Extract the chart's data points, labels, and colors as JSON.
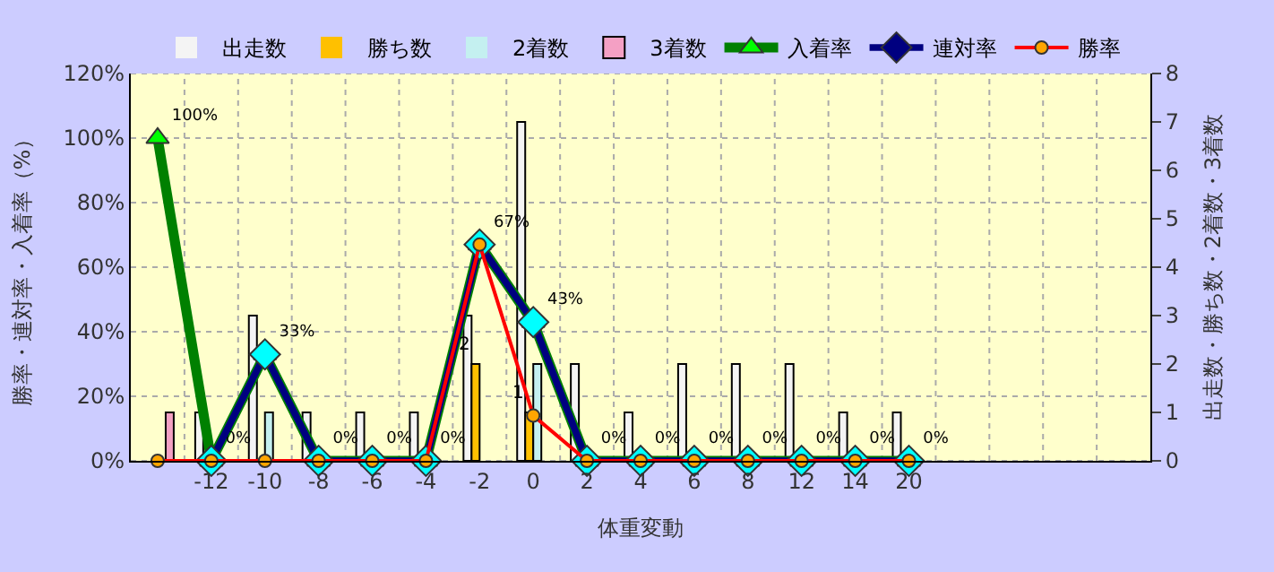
{
  "chart_data": {
    "type": "bar",
    "xlabel": "体重変動",
    "ylabel": "勝率・連対率・入着率（%）",
    "y2label": "出走数・勝ち数・2着数・3着数",
    "categories": [
      null,
      "-12",
      "-10",
      "-8",
      "-6",
      "-4",
      "-2",
      "0",
      "2",
      "4",
      "6",
      "8",
      "12",
      "14",
      "20",
      null,
      null,
      null,
      null
    ],
    "series": [
      {
        "name": "出走数",
        "axis": "y2",
        "color": "#f4f4f4",
        "values": [
          0,
          1,
          3,
          1,
          1,
          1,
          3,
          7,
          2,
          1,
          2,
          2,
          2,
          1,
          1,
          null,
          null,
          null,
          null
        ]
      },
      {
        "name": "勝ち数",
        "axis": "y2",
        "color": "#ffc000",
        "values": [
          0,
          0,
          0,
          0,
          0,
          0,
          2,
          1,
          0,
          0,
          0,
          0,
          0,
          0,
          0,
          null,
          null,
          null,
          null
        ],
        "value_labels": [
          null,
          null,
          null,
          null,
          null,
          null,
          "2",
          "1",
          null,
          null,
          null,
          null,
          null,
          null,
          null,
          null,
          null,
          null,
          null
        ]
      },
      {
        "name": "2着数",
        "axis": "y2",
        "color": "#c4f0f0",
        "values": [
          0,
          0,
          1,
          0,
          0,
          0,
          0,
          2,
          0,
          0,
          0,
          0,
          0,
          0,
          0,
          null,
          null,
          null,
          null
        ]
      },
      {
        "name": "3着数",
        "axis": "y2",
        "color": "#f4a0c4",
        "values": [
          1,
          0,
          0,
          0,
          0,
          0,
          0,
          0,
          0,
          0,
          0,
          0,
          0,
          0,
          0,
          null,
          null,
          null,
          null
        ]
      },
      {
        "name": "入着率",
        "type": "line",
        "marker": "triangle",
        "color": "#008000",
        "colors": [
          "#00ff00",
          "#00ff00",
          "#00ff00",
          "#00ff00",
          "#00ff00",
          "#00ff00",
          "#00ff00",
          "#00ff00",
          "#00ff00",
          "#00ff00",
          "#00ff00",
          "#00ff00",
          "#00ff00",
          "#00ff00",
          "#00ff00",
          null,
          null,
          null,
          null
        ],
        "values": [
          100,
          0,
          33,
          0,
          0,
          0,
          67,
          43,
          0,
          0,
          0,
          0,
          0,
          0,
          0,
          null,
          null,
          null,
          null
        ],
        "value_labels": [
          "100%",
          "0%",
          "33%",
          "0%",
          "0%",
          "0%",
          "67%",
          "43%",
          "0%",
          "0%",
          "0%",
          "0%",
          "0%",
          "0%",
          "0%",
          null,
          null,
          null,
          null
        ]
      },
      {
        "name": "連対率",
        "type": "line",
        "marker": "diamond",
        "color": "#000080",
        "colors": [
          null,
          "#00ffff",
          "#00ffff",
          "#00ffff",
          "#00ffff",
          "#00ffff",
          "#00ffff",
          "#00ffff",
          "#00ffff",
          "#00ffff",
          "#00ffff",
          "#00ffff",
          "#00ffff",
          "#00ffff",
          "#00ffff",
          null,
          null,
          null,
          null
        ],
        "values": [
          null,
          0,
          33,
          0,
          0,
          0,
          67,
          43,
          0,
          0,
          0,
          0,
          0,
          0,
          0,
          null,
          null,
          null,
          null
        ]
      },
      {
        "name": "勝率",
        "type": "line",
        "marker": "circle",
        "color": "#ff0000",
        "colors": [
          "#ffa500",
          "#ffa500",
          "#ffa500",
          "#ffa500",
          "#ffa500",
          "#ffa500",
          "#ffa500",
          "#ffa500",
          "#ffa500",
          "#ffa500",
          "#ffa500",
          "#ffa500",
          "#ffa500",
          "#ffa500",
          "#ffa500",
          null,
          null,
          null,
          null
        ],
        "values": [
          0,
          0,
          0,
          0,
          0,
          0,
          67,
          14,
          0,
          0,
          0,
          0,
          0,
          0,
          0,
          null,
          null,
          null,
          null
        ]
      }
    ],
    "ylim": [
      0,
      120
    ],
    "yticks": [
      {
        "value": 0,
        "label": "0%"
      },
      {
        "value": 20,
        "label": "20%"
      },
      {
        "value": 40,
        "label": "40%"
      },
      {
        "value": 60,
        "label": "60%"
      },
      {
        "value": 80,
        "label": "80%"
      },
      {
        "value": 100,
        "label": "100%"
      },
      {
        "value": 120,
        "label": "120%"
      }
    ],
    "y2lim": [
      0,
      8
    ],
    "y2ticks": [
      0,
      1,
      2,
      3,
      4,
      5,
      6,
      7,
      8
    ],
    "grid": true,
    "legend": "top"
  }
}
